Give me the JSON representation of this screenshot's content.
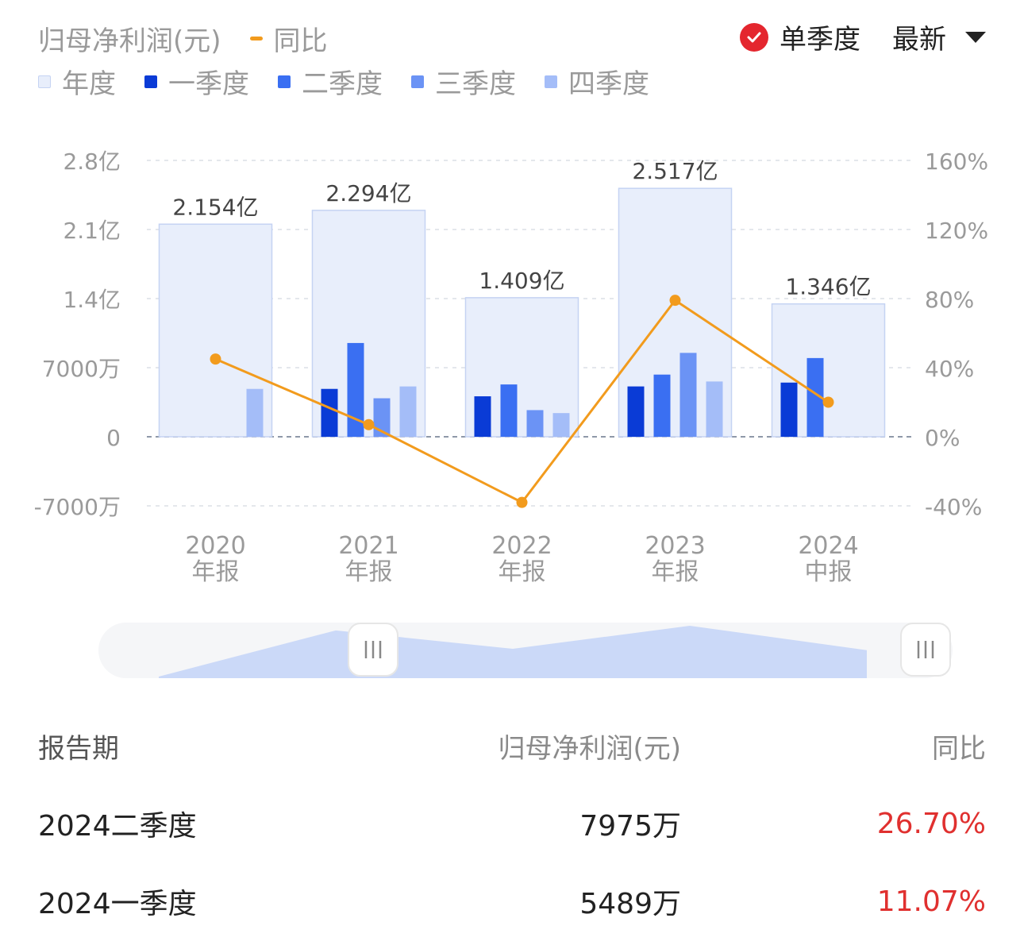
{
  "legend": {
    "title": "归母净利润(元)",
    "yoy_label": "同比",
    "items": [
      {
        "label": "年度",
        "color": "#e8eefb",
        "border": "#c5d3f3"
      },
      {
        "label": "一季度",
        "color": "#0a3bd6"
      },
      {
        "label": "二季度",
        "color": "#3a6ff2"
      },
      {
        "label": "三季度",
        "color": "#6b93f5"
      },
      {
        "label": "四季度",
        "color": "#a4bdf8"
      }
    ]
  },
  "controls": {
    "toggle_label": "单季度",
    "toggle_checked": true,
    "sort_label": "最新"
  },
  "chart_data": {
    "type": "bar",
    "categories": [
      "2020\n年报",
      "2021\n年报",
      "2022\n年报",
      "2023\n年报",
      "2024\n中报"
    ],
    "annual": {
      "values_yi": [
        2.154,
        2.294,
        1.409,
        2.517,
        1.346
      ],
      "labels": [
        "2.154亿",
        "2.294亿",
        "1.409亿",
        "2.517亿",
        "1.346亿"
      ]
    },
    "series": [
      {
        "name": "一季度",
        "color": "#0a3bd6",
        "values_wan": [
          null,
          4850,
          4100,
          5100,
          5489
        ]
      },
      {
        "name": "二季度",
        "color": "#3a6ff2",
        "values_wan": [
          null,
          9500,
          5300,
          6300,
          7975
        ]
      },
      {
        "name": "三季度",
        "color": "#6b93f5",
        "values_wan": [
          null,
          3900,
          2700,
          8500,
          null
        ]
      },
      {
        "name": "四季度",
        "color": "#a4bdf8",
        "values_wan": [
          4850,
          5100,
          2400,
          5600,
          null
        ]
      }
    ],
    "yoy": {
      "name": "同比",
      "color": "#f29b1d",
      "values_pct": [
        45,
        7,
        -38,
        79,
        20
      ]
    },
    "left_axis": {
      "ticks": [
        "2.8亿",
        "2.1亿",
        "1.4亿",
        "7000万",
        "0",
        "-7000万"
      ],
      "ylim_wan": [
        -7000,
        28000
      ]
    },
    "right_axis": {
      "ticks": [
        "160%",
        "120%",
        "80%",
        "40%",
        "0%",
        "-40%"
      ],
      "ylim_pct": [
        -40,
        160
      ]
    },
    "grid": true
  },
  "table": {
    "headers": [
      "报告期",
      "归母净利润(元)",
      "同比"
    ],
    "rows": [
      {
        "period": "2024二季度",
        "value": "7975万",
        "yoy": "26.70%"
      },
      {
        "period": "2024一季度",
        "value": "5489万",
        "yoy": "11.07%"
      }
    ]
  }
}
